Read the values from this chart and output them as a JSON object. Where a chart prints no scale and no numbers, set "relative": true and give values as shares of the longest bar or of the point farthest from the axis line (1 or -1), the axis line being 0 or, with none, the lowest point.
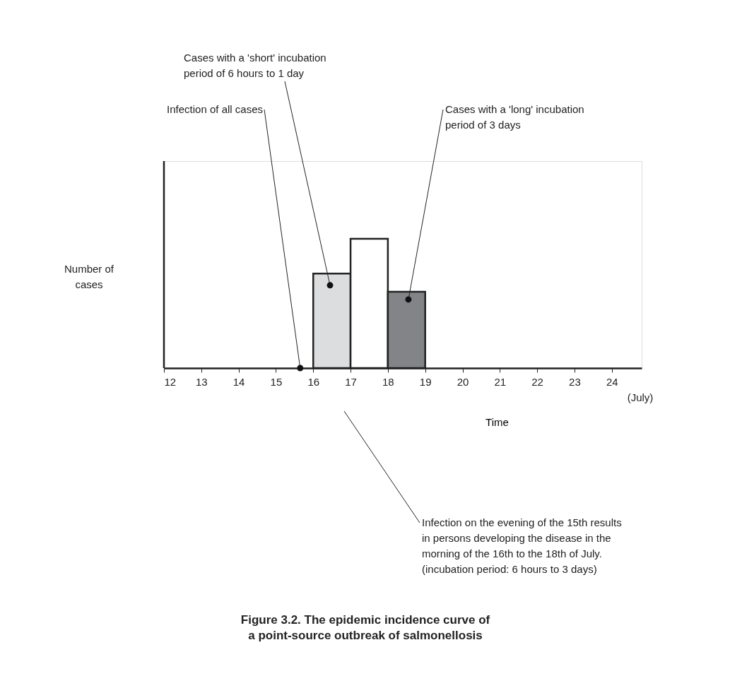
{
  "chart_data": {
    "type": "bar",
    "relative": true,
    "title": "Figure 3.2. The epidemic incidence curve of a point-source outbreak of salmonellosis",
    "xlabel": "Time",
    "ylabel": "Number of cases",
    "x": [
      16.5,
      17.5,
      18.5
    ],
    "values": [
      0.73,
      1,
      0.59
    ],
    "colors": [
      "#dcdddf",
      "#ffffff",
      "#838487"
    ],
    "xlim": [
      12,
      24.8
    ],
    "xticks": [
      12,
      13,
      14,
      15,
      16,
      17,
      18,
      19,
      20,
      21,
      22,
      23,
      24
    ],
    "grid": false,
    "legend": false,
    "annotations": [
      {
        "text": "Infection of all cases",
        "x": 15.65,
        "y": 0
      },
      {
        "text": "Cases with a 'short' incubation\nperiod of 6 hours to 1 day",
        "x": 16.45,
        "y": 0.64
      },
      {
        "text": "Cases with a 'long' incubation\nperiod of 3 days",
        "x": 18.55,
        "y": 0.53
      },
      "Infection on the evening of the 15th results\nin persons developing the disease in the\nmorning of the 16th to the 18th of July.\n(incubation period: 6 hours to 3 days)",
      "(July)"
    ]
  }
}
